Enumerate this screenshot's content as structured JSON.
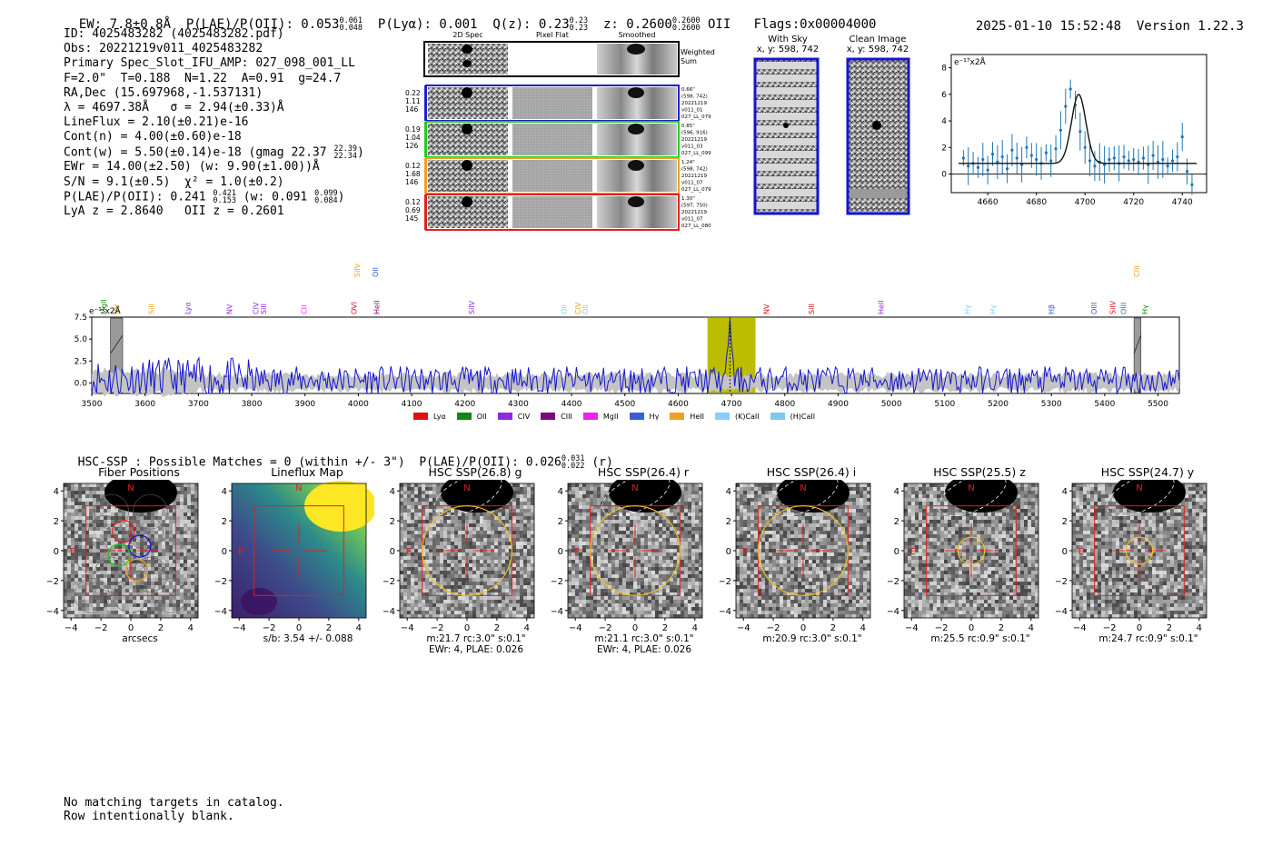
{
  "header": {
    "ew": "EW: 7.8±0.8Å",
    "plae_label": "P(LAE)/P(OII): 0.053",
    "plae_hi": "0.061",
    "plae_lo": "0.048",
    "plya": "P(Lyα): 0.001",
    "qz_label": "Q(z): 0.23",
    "qz_hi": "0.23",
    "qz_lo": "0.23",
    "z_label": "z: 0.2600",
    "z_hi": "0.2600",
    "z_lo": "0.2600",
    "z_line": "OII",
    "flags": "Flags:0x00004000",
    "timestamp": "2025-01-10 15:52:48",
    "version": "Version 1.22.3"
  },
  "info": {
    "id": "ID: 4025483282 (4025483282.pdf)",
    "obs": "Obs: 20221219v011_4025483282",
    "primary": "Primary Spec_Slot_IFU_AMP: 027_098_001_LL",
    "params": "F=2.0\"  T=0.188  N=1.22  A=0.91  g=24.7",
    "radec": "RA,Dec (15.697968,-1.537131)",
    "lambda": "λ = 4697.38Å   σ = 2.94(±0.33)Å",
    "lineflux": "LineFlux = 2.10(±0.21)e-16",
    "cont_n": "Cont(n) = 4.00(±0.60)e-18",
    "cont_w": "Cont(w) = 5.50(±0.14)e-18 (gmag 22.37",
    "cont_w_hi": "22.39",
    "cont_w_lo": "22.34",
    "cont_w_end": ")",
    "ewr": "EWr = 14.00(±2.50) (w: 9.90(±1.00))Å",
    "sn": "S/N = 9.1(±0.5)  χ² = 1.0(±0.2)",
    "plae2": "P(LAE)/P(OII): 0.241",
    "plae2_hi": "0.421",
    "plae2_lo": "0.153",
    "plae2_w": "(w: 0.091",
    "plae2_w_hi": "0.099",
    "plae2_w_lo": "0.084",
    "plae2_end": ")",
    "lya_z": "LyA z = 2.8640   OII z = 0.2601"
  },
  "cutouts": {
    "col_2d": "2D Spec",
    "col_flat": "Pixel Flat",
    "col_smooth": "Smoothed",
    "weighted": "Weighted",
    "sum": "Sum",
    "fibers": [
      {
        "v1": "0.22",
        "v2": "1.11",
        "v3": "146",
        "color": "#1f1fd0",
        "note1": "0.66\"",
        "note2": "(598, 742)",
        "note3": "20221219",
        "note4": "v011_01",
        "note5": "027_LL_079"
      },
      {
        "v1": "0.19",
        "v2": "1.04",
        "v3": "126",
        "color": "#22cc22",
        "note1": "0.85\"",
        "note2": "(596, 916)",
        "note3": "20221219",
        "note4": "v011_03",
        "note5": "027_LL_099"
      },
      {
        "v1": "0.12",
        "v2": "1.68",
        "v3": "146",
        "color": "#f0a020",
        "note1": "1.24\"",
        "note2": "(598, 742)",
        "note3": "20221219",
        "note4": "v011_07",
        "note5": "027_LL_079"
      },
      {
        "v1": "0.12",
        "v2": "0.69",
        "v3": "145",
        "color": "#e02020",
        "note1": "1.30\"",
        "note2": "(597, 750)",
        "note3": "20221219",
        "note4": "v011_07",
        "note5": "027_LL_080"
      }
    ]
  },
  "sky": {
    "with_sky": "With Sky",
    "with_sky_xy": "x, y: 598, 742",
    "clean": "Clean Image",
    "clean_xy": "x, y: 598, 742"
  },
  "colors": {
    "spectrum": "#1515d0",
    "fit": "#000000",
    "points": "#1f77b4",
    "highlight": "#bcbc00",
    "noise": "#c0c0c0",
    "box": "#e02020",
    "aperture": "#f0c020"
  },
  "chart_data": [
    {
      "type": "scatter",
      "title": "",
      "ylabel": "e⁻¹⁷x2Å",
      "xlim": [
        4645,
        4750
      ],
      "ylim": [
        -1.4,
        9
      ],
      "xticks": [
        "4660",
        "4680",
        "4700",
        "4720",
        "4740"
      ],
      "yticks": [
        "0",
        "2",
        "4",
        "6",
        "8"
      ],
      "x": [
        4650,
        4652,
        4654,
        4656,
        4658,
        4660,
        4662,
        4664,
        4666,
        4668,
        4670,
        4672,
        4674,
        4676,
        4678,
        4680,
        4682,
        4684,
        4686,
        4688,
        4690,
        4692,
        4694,
        4696,
        4698,
        4700,
        4702,
        4704,
        4706,
        4708,
        4710,
        4712,
        4714,
        4716,
        4718,
        4720,
        4722,
        4724,
        4726,
        4728,
        4730,
        4732,
        4734,
        4736,
        4738,
        4740,
        4742,
        4744
      ],
      "y": [
        1.2,
        0.6,
        0.8,
        0.5,
        1.1,
        0.3,
        1.5,
        0.9,
        1.3,
        0.4,
        1.8,
        1.2,
        0.7,
        2.0,
        1.4,
        1.1,
        0.8,
        1.6,
        1.0,
        1.9,
        3.3,
        5.1,
        6.4,
        5.2,
        3.2,
        2.0,
        1.0,
        0.6,
        0.9,
        0.7,
        1.1,
        1.2,
        0.8,
        1.3,
        1.0,
        1.1,
        0.9,
        1.2,
        0.7,
        1.4,
        0.9,
        1.1,
        0.6,
        1.0,
        1.3,
        2.8,
        0.2,
        -0.8
      ],
      "fit": {
        "type": "gaussian",
        "center": 4697.4,
        "sigma": 2.94,
        "amplitude": 5.2,
        "continuum": 0.8
      }
    },
    {
      "type": "line",
      "ylabel": "e⁻¹⁷x2Å",
      "xlim": [
        3500,
        5540
      ],
      "ylim": [
        -1.2,
        7.5
      ],
      "xticks": [
        "3500",
        "3600",
        "3700",
        "3800",
        "3900",
        "4000",
        "4100",
        "4200",
        "4300",
        "4400",
        "4500",
        "4600",
        "4700",
        "4800",
        "4900",
        "5000",
        "5100",
        "5200",
        "5300",
        "5400",
        "5500"
      ],
      "yticks": [
        "0.0",
        "2.5",
        "5.0",
        "7.5"
      ],
      "highlight_range": [
        4655,
        4745
      ],
      "masked": [
        [
          3535,
          3558
        ],
        [
          5455,
          5468
        ]
      ],
      "peak": {
        "x": 4697,
        "y": 7.4
      },
      "legend": [
        {
          "label": "Lyα",
          "color": "#e01010"
        },
        {
          "label": "OII",
          "color": "#118811"
        },
        {
          "label": "CIV",
          "color": "#8a2be2"
        },
        {
          "label": "CIII",
          "color": "#7a0a7a"
        },
        {
          "label": "MgII",
          "color": "#ee22ee"
        },
        {
          "label": "Hγ",
          "color": "#3a5ed8"
        },
        {
          "label": "HeII",
          "color": "#f0a020"
        },
        {
          "label": "(K)CaII",
          "color": "#87cefa"
        },
        {
          "label": "(H)CaII",
          "color": "#7ec8ee"
        }
      ],
      "line_labels_top": [
        {
          "label": "SiIV",
          "x": 3998,
          "color": "#f0a020"
        },
        {
          "label": "OII",
          "x": 4032,
          "color": "#3a5ed8"
        },
        {
          "label": "CIII",
          "x": 5460,
          "color": "#f0a020"
        }
      ],
      "line_labels": [
        {
          "label": "MgII",
          "x": 3522,
          "color": "#118811"
        },
        {
          "label": "NV",
          "x": 3547,
          "color": "#f0a020"
        },
        {
          "label": "SiII",
          "x": 3612,
          "color": "#f0a020"
        },
        {
          "label": "Lyα",
          "x": 3680,
          "color": "#8a2be2"
        },
        {
          "label": "NV",
          "x": 3758,
          "color": "#8a2be2"
        },
        {
          "label": "CIV",
          "x": 3808,
          "color": "#8a2be2"
        },
        {
          "label": "SiII",
          "x": 3822,
          "color": "#8a2be2"
        },
        {
          "label": "CII",
          "x": 3898,
          "color": "#ee22ee"
        },
        {
          "label": "OVI",
          "x": 3992,
          "color": "#e01010"
        },
        {
          "label": "HeII",
          "x": 4034,
          "color": "#7a0a7a"
        },
        {
          "label": "SiIV",
          "x": 4212,
          "color": "#8a2be2"
        },
        {
          "label": "OII",
          "x": 4385,
          "color": "#87cefa"
        },
        {
          "label": "CIV",
          "x": 4412,
          "color": "#f0a020"
        },
        {
          "label": "OII",
          "x": 4425,
          "color": "#87cefa"
        },
        {
          "label": "NV",
          "x": 4765,
          "color": "#e01010"
        },
        {
          "label": "SiII",
          "x": 4850,
          "color": "#e01010"
        },
        {
          "label": "HeII",
          "x": 4980,
          "color": "#8a2be2"
        },
        {
          "label": "Hγ",
          "x": 5142,
          "color": "#87cefa"
        },
        {
          "label": "Hγ",
          "x": 5190,
          "color": "#87cefa"
        },
        {
          "label": "Hβ",
          "x": 5300,
          "color": "#3a5ed8"
        },
        {
          "label": "OIII",
          "x": 5380,
          "color": "#3a5ed8"
        },
        {
          "label": "SiIV",
          "x": 5415,
          "color": "#e01010"
        },
        {
          "label": "OIII",
          "x": 5435,
          "color": "#3a5ed8"
        },
        {
          "label": "Hγ",
          "x": 5475,
          "color": "#118811"
        }
      ]
    }
  ],
  "hsc": {
    "summary": "HSC-SSP : Possible Matches = 0 (within +/- 3\")",
    "plae": "P(LAE)/P(OII): 0.026",
    "plae_hi": "0.031",
    "plae_lo": "0.022",
    "band": "(r)",
    "tick_labels_x": [
      "−4",
      "−2",
      "0",
      "2",
      "4"
    ],
    "tick_labels_y": [
      "4",
      "2",
      "0",
      "−2",
      "−4"
    ],
    "north": "N",
    "east": "E",
    "panels": [
      {
        "title": "Fiber Positions",
        "cap1": "arcsecs",
        "cap2": ""
      },
      {
        "title": "Lineflux Map",
        "cap1": "s/b: 3.54 +/- 0.088",
        "cap2": ""
      },
      {
        "title": "HSC SSP(26.8) g",
        "cap1": "m:21.7 rc:3.0\"  s:0.1\"",
        "cap2": "EWr: 4, PLAE: 0.026"
      },
      {
        "title": "HSC SSP(26.4) r",
        "cap1": "m:21.1 rc:3.0\"  s:0.1\"",
        "cap2": "EWr: 4, PLAE: 0.026"
      },
      {
        "title": "HSC SSP(26.4) i",
        "cap1": "m:20.9 rc:3.0\"  s:0.1\"",
        "cap2": ""
      },
      {
        "title": "HSC SSP(25.5) z",
        "cap1": "m:25.5 rc:0.9\"  s:0.1\"",
        "cap2": ""
      },
      {
        "title": "HSC SSP(24.7) y",
        "cap1": "m:24.7 rc:0.9\"  s:0.1\"",
        "cap2": ""
      }
    ]
  },
  "footer": {
    "line1": "No matching targets in catalog.",
    "line2": "Row intentionally blank."
  }
}
